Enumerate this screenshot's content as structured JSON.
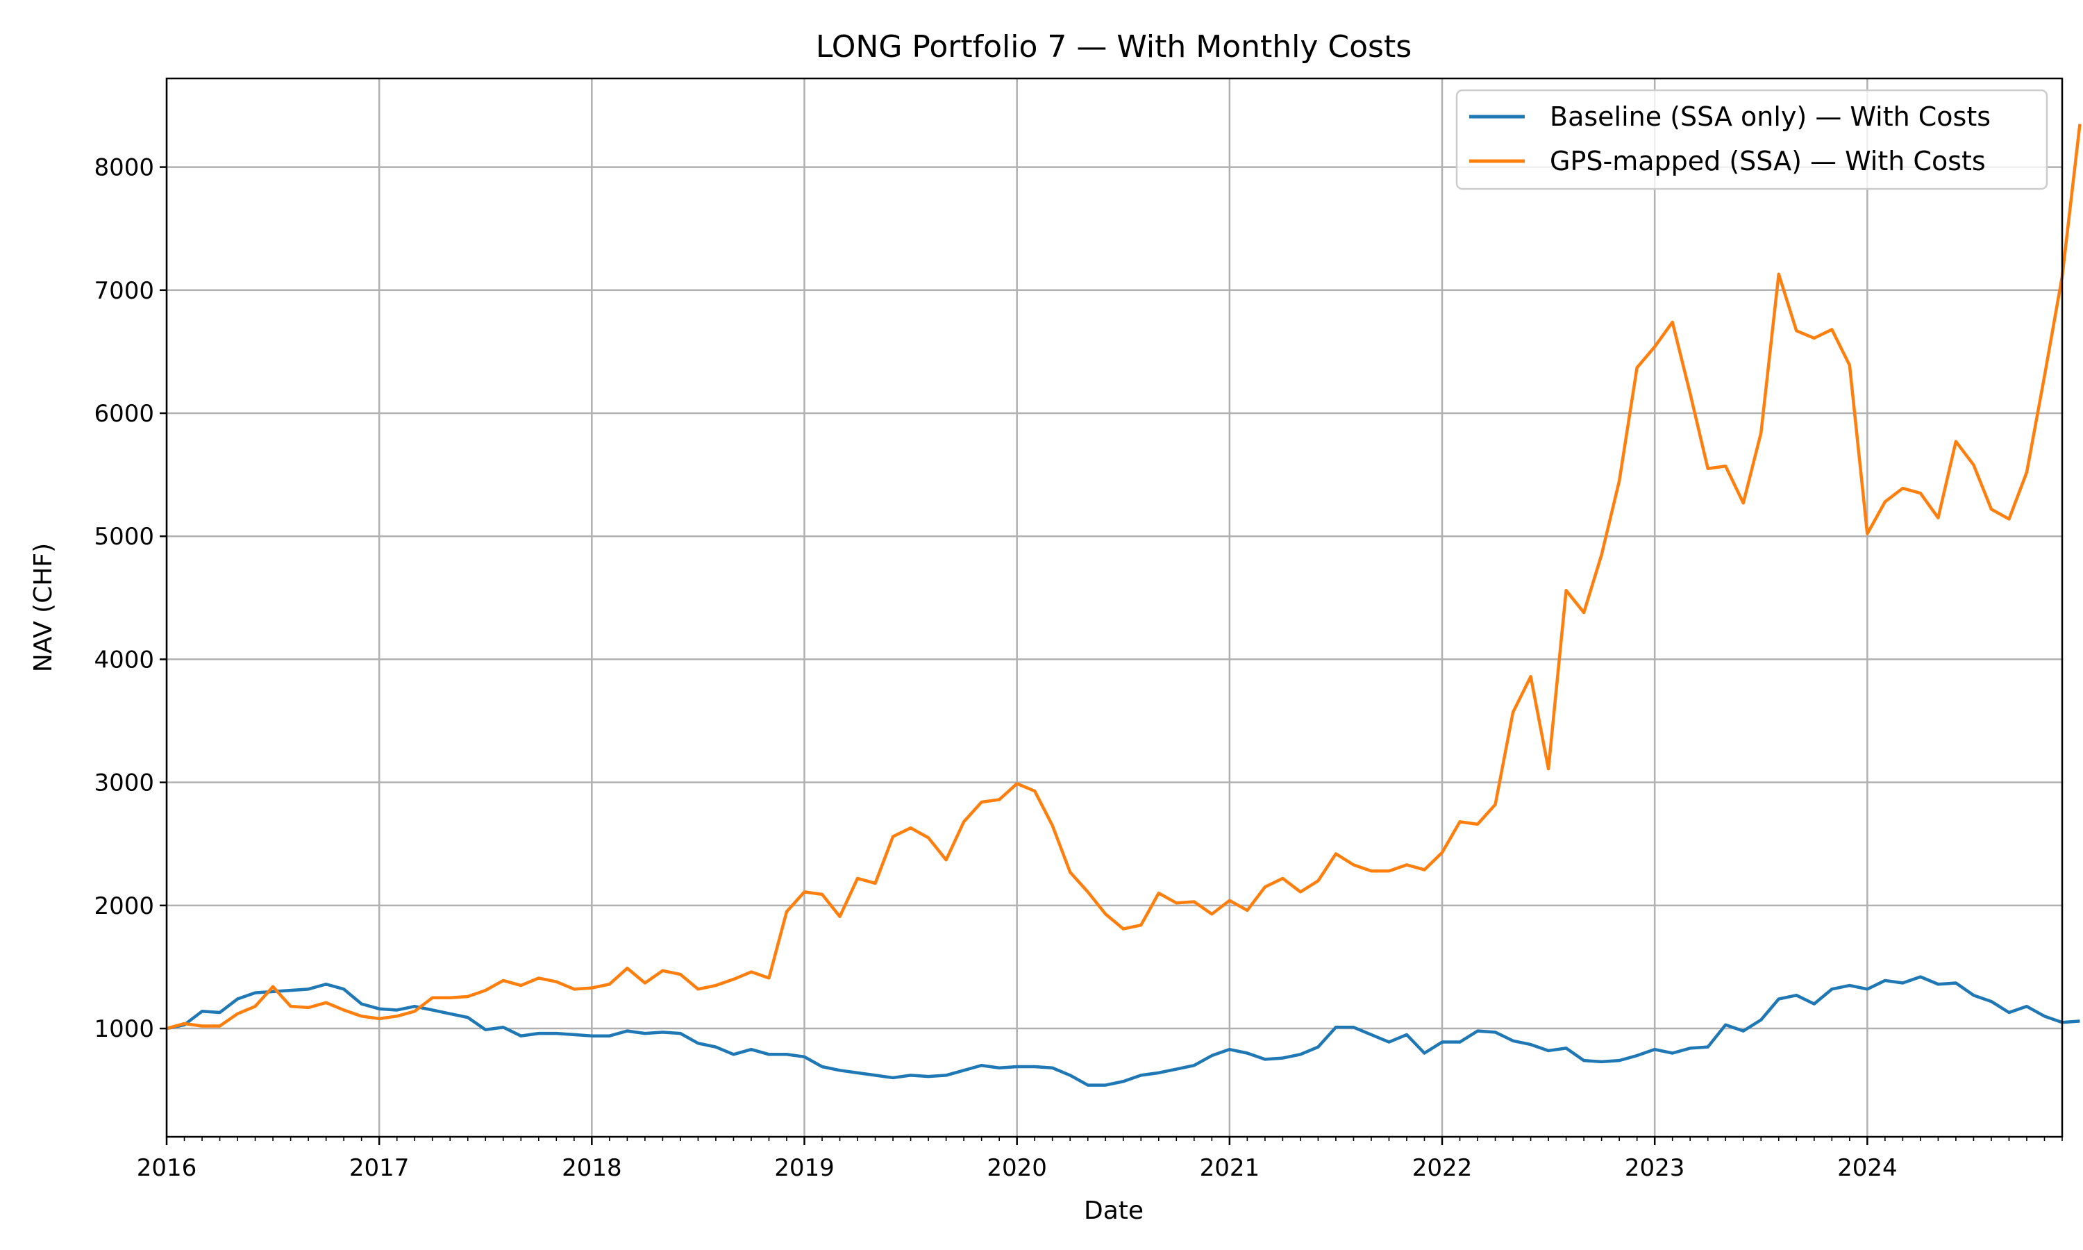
{
  "chart_data": {
    "type": "line",
    "title": "LONG Portfolio 7 — With Monthly Costs",
    "xlabel": "Date",
    "ylabel": "NAV (CHF)",
    "xlim": [
      "2016-01",
      "2024-12"
    ],
    "ylim": [
      120,
      8720
    ],
    "x_ticks": [
      "2016",
      "2017",
      "2018",
      "2019",
      "2020",
      "2021",
      "2022",
      "2023",
      "2024"
    ],
    "y_ticks": [
      1000,
      2000,
      3000,
      4000,
      5000,
      6000,
      7000,
      8000
    ],
    "grid": true,
    "legend_position": "top-right",
    "start_month": "2016-01",
    "series": [
      {
        "name": "Baseline (SSA only) — With Costs",
        "color": "#1f77b4",
        "values": [
          1000,
          1030,
          1140,
          1130,
          1240,
          1290,
          1300,
          1310,
          1320,
          1360,
          1320,
          1200,
          1160,
          1150,
          1180,
          1150,
          1120,
          1090,
          990,
          1010,
          940,
          960,
          960,
          950,
          940,
          940,
          980,
          960,
          970,
          960,
          880,
          850,
          790,
          830,
          790,
          790,
          770,
          690,
          660,
          640,
          620,
          600,
          620,
          610,
          620,
          660,
          700,
          680,
          690,
          690,
          680,
          620,
          540,
          540,
          570,
          620,
          640,
          670,
          700,
          780,
          830,
          800,
          750,
          760,
          790,
          850,
          1010,
          1010,
          950,
          890,
          950,
          800,
          890,
          890,
          980,
          970,
          900,
          870,
          820,
          840,
          740,
          730,
          740,
          780,
          830,
          800,
          840,
          850,
          1030,
          980,
          1070,
          1240,
          1270,
          1200,
          1320,
          1350,
          1320,
          1390,
          1370,
          1420,
          1360,
          1370,
          1270,
          1220,
          1130,
          1180,
          1100,
          1050,
          1060
        ]
      },
      {
        "name": "GPS-mapped (SSA) — With Costs",
        "color": "#ff7f0e",
        "values": [
          1000,
          1040,
          1020,
          1020,
          1120,
          1180,
          1340,
          1180,
          1170,
          1210,
          1150,
          1100,
          1080,
          1100,
          1140,
          1250,
          1250,
          1260,
          1310,
          1390,
          1350,
          1410,
          1380,
          1320,
          1330,
          1360,
          1490,
          1370,
          1470,
          1440,
          1320,
          1350,
          1400,
          1460,
          1410,
          1950,
          2110,
          2090,
          1910,
          2220,
          2180,
          2560,
          2630,
          2550,
          2370,
          2680,
          2840,
          2860,
          2990,
          2930,
          2650,
          2270,
          2110,
          1930,
          1810,
          1840,
          2100,
          2020,
          2030,
          1930,
          2040,
          1960,
          2150,
          2220,
          2110,
          2200,
          2420,
          2330,
          2280,
          2280,
          2330,
          2290,
          2430,
          2680,
          2660,
          2820,
          3570,
          3860,
          3110,
          4560,
          4380,
          4850,
          5450,
          6370,
          6540,
          6740,
          6160,
          5550,
          5570,
          5270,
          5840,
          7130,
          6670,
          6610,
          6680,
          6390,
          5020,
          5280,
          5390,
          5350,
          5150,
          5770,
          5580,
          5220,
          5140,
          5520,
          6300,
          7110,
          8350
        ]
      }
    ]
  }
}
